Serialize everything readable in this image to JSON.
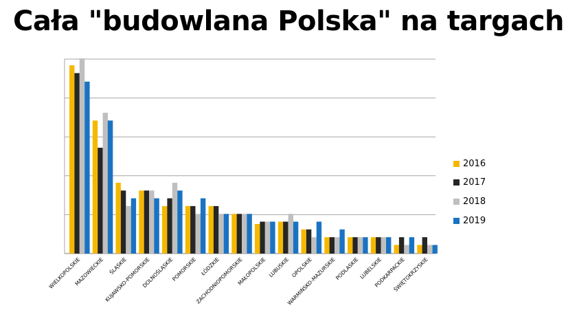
{
  "title": "Cała \"budowlana Polska\" na targach",
  "chart_data": {
    "type": "bar",
    "title": "Cała \"budowlana Polska\" na targach",
    "xlabel": "",
    "ylabel": "",
    "ylim": [
      0,
      250
    ],
    "grid": true,
    "legend_position": "right",
    "y_tick_labels_shown": false,
    "categories": [
      "WIELKOPOLSKIE",
      "MAZOWIECKIE",
      "ŚLĄSKIE",
      "KUJAWSKO-POMORSKIE",
      "DOLNOŚLĄSKIE",
      "POMORSKIE",
      "ŁÓDZKIE",
      "ZACHODNIOPOMORSKIE",
      "MAŁOPOLSKIE",
      "LUBUSKIE",
      "OPOLSKIE",
      "WARMIŃSKO-MAZURSKIE",
      "PODLASKIE",
      "LUBELSKIE",
      "PODKARPACKIE",
      "ŚWIĘTOKRZYSKIE"
    ],
    "series": [
      {
        "name": "2016",
        "color": "#f5b800",
        "values": [
          242,
          171,
          91,
          81,
          61,
          61,
          61,
          51,
          38,
          41,
          31,
          21,
          21,
          21,
          11,
          11
        ]
      },
      {
        "name": "2017",
        "color": "#262626",
        "values": [
          232,
          136,
          81,
          81,
          71,
          61,
          61,
          51,
          41,
          41,
          31,
          21,
          21,
          21,
          21,
          21
        ]
      },
      {
        "name": "2018",
        "color": "#bfbfbf",
        "values": [
          251,
          181,
          61,
          81,
          91,
          51,
          51,
          51,
          41,
          51,
          21,
          21,
          21,
          21,
          11,
          11
        ]
      },
      {
        "name": "2019",
        "color": "#1a73c2",
        "values": [
          221,
          171,
          71,
          71,
          81,
          71,
          51,
          51,
          41,
          41,
          41,
          31,
          21,
          21,
          21,
          11
        ]
      }
    ]
  }
}
